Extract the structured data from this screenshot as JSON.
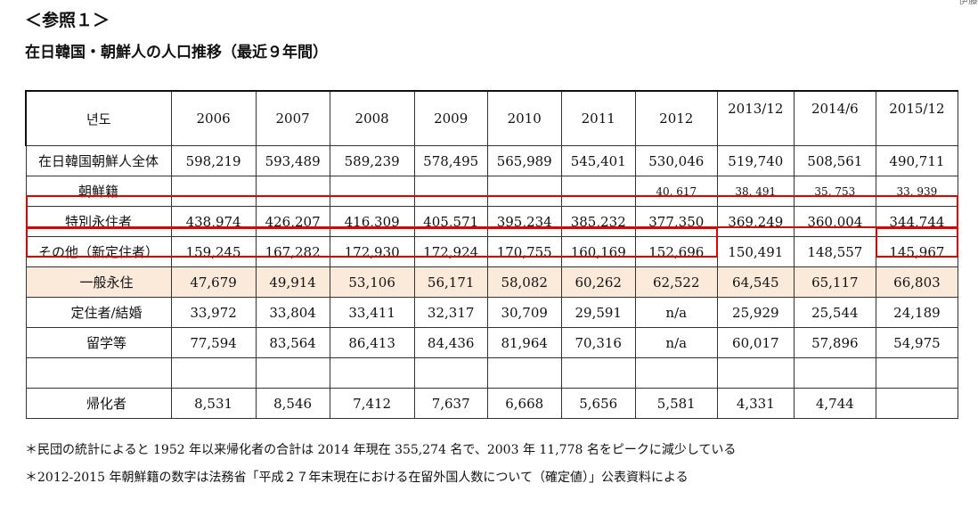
{
  "heading": "＜参照１＞",
  "title": "在日韓国・朝鮮人の人口推移（最近９年間）",
  "corner_text": "伊藤",
  "table": {
    "header": [
      "년도",
      "2006",
      "2007",
      "2008",
      "2009",
      "2010",
      "2011",
      "2012",
      "2013/12",
      "2014/6",
      "2015/12"
    ],
    "rows": [
      {
        "label": "在日韓国朝鮮人全体",
        "cells": [
          "598,219",
          "593,489",
          "589,239",
          "578,495",
          "565,989",
          "545,401",
          "530,046",
          "519,740",
          "508,561",
          "490,711"
        ]
      },
      {
        "label": "朝鮮籍",
        "cells": [
          "",
          "",
          "",
          "",
          "",
          "",
          "40, 617",
          "38, 491",
          "35, 753",
          "33, 939"
        ]
      },
      {
        "label": "特別永住者",
        "cells": [
          "438,974",
          "426,207",
          "416,309",
          "405,571",
          "395,234",
          "385,232",
          "377,350",
          "369,249",
          "360,004",
          "344,744"
        ]
      },
      {
        "label": "その他（新定住者）",
        "cells": [
          "159,245",
          "167,282",
          "172,930",
          "172,924",
          "170,755",
          "160,169",
          "152,696",
          "150,491",
          "148,557",
          "145,967"
        ]
      },
      {
        "label": "一般永住",
        "cells": [
          "47,679",
          "49,914",
          "53,106",
          "56,171",
          "58,082",
          "60,262",
          "62,522",
          "64,545",
          "65,117",
          "66,803"
        ]
      },
      {
        "label": "定住者/結婚",
        "cells": [
          "33,972",
          "33,804",
          "33,411",
          "32,317",
          "30,709",
          "29,591",
          "n/a",
          "25,929",
          "25,544",
          "24,189"
        ]
      },
      {
        "label": "留学等",
        "cells": [
          "77,594",
          "83,564",
          "86,413",
          "84,436",
          "81,964",
          "70,316",
          "n/a",
          "60,017",
          "57,896",
          "54,975"
        ]
      },
      {
        "label": "",
        "cells": [
          "",
          "",
          "",
          "",
          "",
          "",
          "",
          "",
          "",
          ""
        ]
      },
      {
        "label": "帰化者",
        "cells": [
          "8,531",
          "8,546",
          "7,412",
          "7,637",
          "6,668",
          "5,656",
          "5,581",
          "4,331",
          "4,744",
          ""
        ]
      }
    ]
  },
  "footnotes": [
    "＊民団の統計によると 1952 年以来帰化者の合計は 2014 年現在 355,274 名で、2003 年 11,778 名をピークに減少している",
    "＊2012-2015 年朝鮮籍の数字は法務省「平成２７年末現在における在留外国人数について（確定値）」公表資料による"
  ],
  "colors": {
    "highlight_border": "#e00000",
    "shade_row": "#fbe9da"
  }
}
